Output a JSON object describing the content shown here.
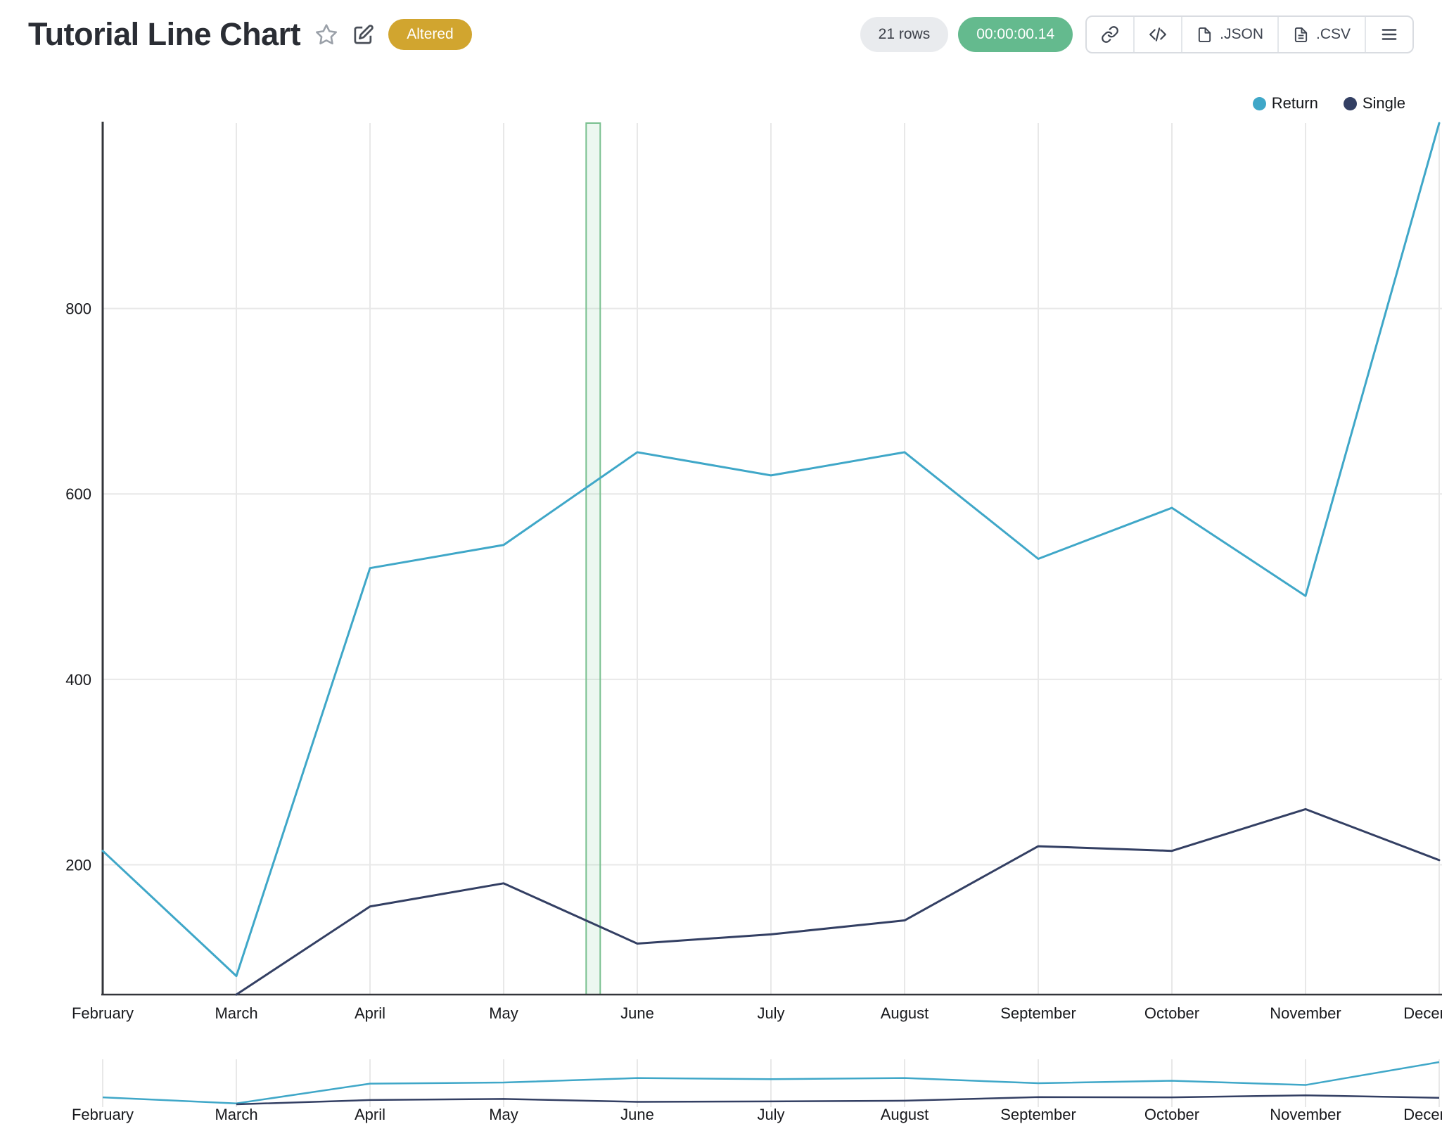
{
  "header": {
    "title": "Tutorial Line Chart",
    "badge": "Altered",
    "badge_color": "#d1a52f",
    "rows_count": "21 rows",
    "elapsed_time": "00:00:00.14",
    "timer_color": "#64ba8e",
    "json_label": ".JSON",
    "csv_label": ".CSV",
    "icons": [
      "favorite-star",
      "edit-pencil",
      "copy-link",
      "embed-code",
      "json-file",
      "csv-file",
      "menu"
    ]
  },
  "chart_data": {
    "type": "line",
    "title": "Tutorial Line Chart",
    "categories": [
      "February",
      "March",
      "April",
      "May",
      "June",
      "July",
      "August",
      "September",
      "October",
      "November",
      "December"
    ],
    "series": [
      {
        "name": "Return",
        "color": "#3fa7c8",
        "values": [
          215,
          80,
          520,
          545,
          645,
          620,
          645,
          530,
          585,
          490,
          1000
        ]
      },
      {
        "name": "Single",
        "color": "#333f63",
        "values": [
          null,
          60,
          155,
          180,
          115,
          125,
          140,
          220,
          215,
          260,
          205
        ]
      }
    ],
    "ylim": [
      60,
      1000
    ],
    "yticks": [
      200,
      400,
      600,
      800
    ],
    "xlabel": "",
    "ylabel": "",
    "grid": true,
    "legend_position": "top-right",
    "annotation": {
      "kind": "vertical-highlight-band",
      "between": [
        "May",
        "June"
      ],
      "x_index_fraction": 3.67,
      "color": "#79c08f"
    },
    "navigator": {
      "shown": true,
      "repeats_categories": true
    }
  }
}
